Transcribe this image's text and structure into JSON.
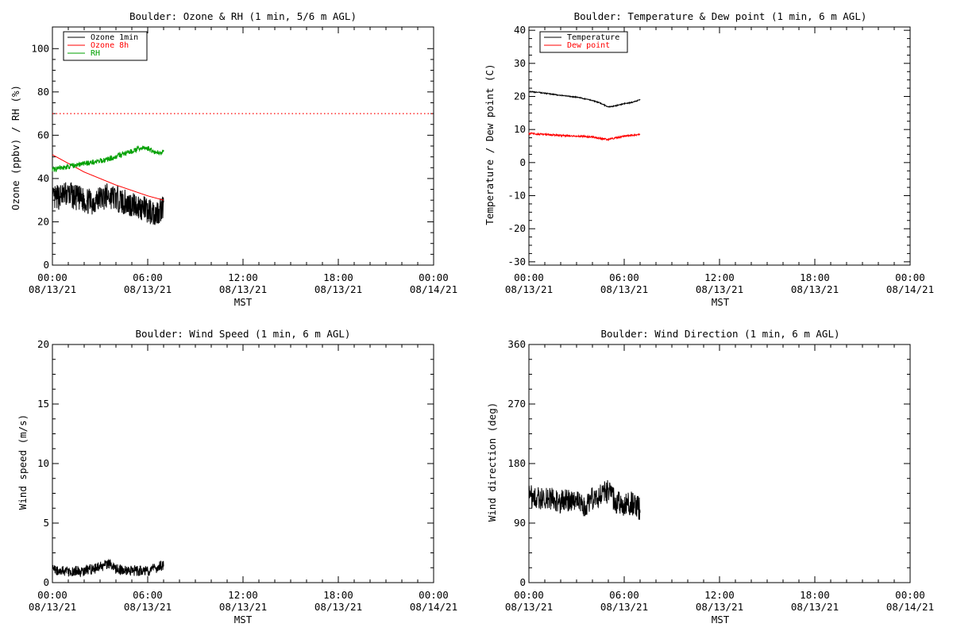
{
  "chart_data": [
    {
      "type": "line",
      "title": "Boulder: Ozone & RH (1 min, 5/6 m AGL)",
      "ylabel": "Ozone (ppbv) / RH (%)",
      "xlabel": "",
      "ylim": [
        0,
        110
      ],
      "yticks": [
        "0",
        "20",
        "40",
        "60",
        "80",
        "100"
      ],
      "xtick_times": [
        "00:00",
        "06:00",
        "12:00",
        "18:00",
        "00:00"
      ],
      "xtick_dates": [
        "08/13/21",
        "08/13/21",
        "08/13/21",
        "08/13/21",
        "08/14/21"
      ],
      "legend_position": "top-left",
      "reference_line": {
        "y": 70,
        "color": "#ff0000",
        "style": "dotted"
      },
      "series": [
        {
          "name": "Ozone 1min",
          "color": "#000000",
          "noise": 6,
          "x": [
            0,
            0.5,
            1,
            1.5,
            2,
            2.5,
            3,
            3.5,
            4,
            4.5,
            5,
            5.5,
            6,
            6.5,
            7
          ],
          "values": [
            30,
            32,
            33,
            31,
            30,
            29,
            31,
            32,
            31,
            29,
            28,
            27,
            25,
            24,
            27
          ]
        },
        {
          "name": "Ozone 8h",
          "color": "#ff0000",
          "noise": 0,
          "x": [
            0,
            1,
            2,
            3,
            4,
            5,
            6,
            7
          ],
          "values": [
            51,
            47,
            43,
            40,
            37,
            34.5,
            32,
            30
          ]
        },
        {
          "name": "RH",
          "color": "#00a000",
          "noise": 1.2,
          "x": [
            0,
            1,
            2,
            3,
            4,
            4.5,
            5,
            5.5,
            6,
            6.5,
            7
          ],
          "values": [
            44,
            45.5,
            47,
            48,
            50,
            51.5,
            52.5,
            54,
            54,
            52,
            52
          ]
        }
      ]
    },
    {
      "type": "line",
      "title": "Boulder: Temperature & Dew point (1 min, 6 m AGL)",
      "ylabel": "Temperature / Dew point (C)",
      "xlabel": "",
      "ylim": [
        -31,
        41
      ],
      "yticks": [
        "-30",
        "-20",
        "-10",
        "0",
        "10",
        "20",
        "30",
        "40"
      ],
      "xtick_times": [
        "00:00",
        "06:00",
        "12:00",
        "18:00",
        "00:00"
      ],
      "xtick_dates": [
        "08/13/21",
        "08/13/21",
        "08/13/21",
        "08/13/21",
        "08/14/21"
      ],
      "legend_position": "top-left",
      "series": [
        {
          "name": "Temperature",
          "color": "#000000",
          "noise": 0.15,
          "x": [
            0,
            1,
            2,
            3,
            4,
            4.5,
            5,
            5.5,
            6,
            6.5,
            7
          ],
          "values": [
            21.5,
            21,
            20.3,
            19.8,
            18.8,
            18,
            16.8,
            17.2,
            17.8,
            18.2,
            19
          ]
        },
        {
          "name": "Dew point",
          "color": "#ff0000",
          "noise": 0.25,
          "x": [
            0,
            1,
            2,
            3,
            4,
            4.5,
            5,
            5.5,
            6,
            6.5,
            7
          ],
          "values": [
            8.8,
            8.5,
            8.2,
            8.0,
            7.8,
            7.3,
            7.0,
            7.5,
            8.0,
            8.3,
            8.5
          ]
        }
      ]
    },
    {
      "type": "line",
      "title": "Boulder: Wind Speed (1 min, 6 m AGL)",
      "ylabel": "Wind speed (m/s)",
      "xlabel": "",
      "ylim": [
        0,
        20
      ],
      "yticks": [
        "0",
        "5",
        "10",
        "15",
        "20"
      ],
      "xtick_times": [
        "00:00",
        "06:00",
        "12:00",
        "18:00",
        "00:00"
      ],
      "xtick_dates": [
        "08/13/21",
        "08/13/21",
        "08/13/21",
        "08/13/21",
        "08/14/21"
      ],
      "series": [
        {
          "name": "",
          "color": "#000000",
          "noise": 0.45,
          "x": [
            0,
            1,
            2,
            3,
            3.5,
            4,
            5,
            6,
            6.5,
            7
          ],
          "values": [
            1.1,
            0.9,
            1.0,
            1.3,
            1.6,
            1.1,
            1.0,
            1.0,
            1.2,
            1.5
          ]
        }
      ]
    },
    {
      "type": "line",
      "title": "Boulder: Wind Direction (1 min, 6 m AGL)",
      "ylabel": "Wind direction (deg)",
      "xlabel": "MST",
      "ylim": [
        0,
        360
      ],
      "yticks": [
        "0",
        "90",
        "180",
        "270",
        "360"
      ],
      "xtick_times": [
        "00:00",
        "06:00",
        "12:00",
        "18:00",
        "00:00"
      ],
      "xtick_dates": [
        "08/13/21",
        "08/13/21",
        "08/13/21",
        "08/13/21",
        "08/14/21"
      ],
      "series": [
        {
          "name": "",
          "color": "#000000",
          "noise": 18,
          "x": [
            0,
            1,
            2,
            3,
            3.5,
            4,
            5,
            5.5,
            6,
            6.5,
            7
          ],
          "values": [
            130,
            128,
            122,
            125,
            112,
            128,
            138,
            122,
            118,
            120,
            110
          ]
        }
      ]
    }
  ],
  "xlabel_top_row": "MST",
  "xlabel_bottom_left": "MST",
  "xlabel_bottom_right": "MST"
}
